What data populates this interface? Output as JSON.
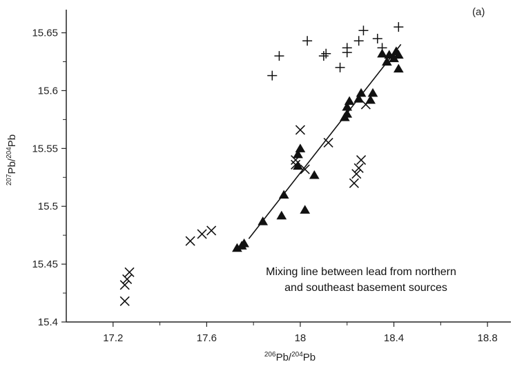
{
  "chart_data": {
    "type": "scatter",
    "panel_label": "(a)",
    "xlabel": {
      "sup1": "206",
      "base1": "Pb/",
      "sup2": "204",
      "base2": "Pb"
    },
    "ylabel": {
      "sup1": "207",
      "base1": "Pb/",
      "sup2": "204",
      "base2": "Pb"
    },
    "xlim": [
      17.0,
      18.9
    ],
    "ylim": [
      15.4,
      15.67
    ],
    "xticks": [
      17.2,
      17.6,
      18.0,
      18.4,
      18.8
    ],
    "xtick_labels": [
      "17.2",
      "17.6",
      "18",
      "18.4",
      "18.8"
    ],
    "yticks": [
      15.4,
      15.45,
      15.5,
      15.55,
      15.6,
      15.65
    ],
    "ytick_labels": [
      "15.4",
      "15.45",
      "15.5",
      "15.55",
      "15.6",
      "15.65"
    ],
    "annotation": [
      "Mixing line between lead from northern",
      "and southeast basement sources"
    ],
    "mixing_line": {
      "x": [
        17.78,
        18.43
      ],
      "y": [
        15.472,
        15.64
      ]
    },
    "series": [
      {
        "marker": "plus",
        "points": [
          [
            17.88,
            15.613
          ],
          [
            17.91,
            15.63
          ],
          [
            18.03,
            15.643
          ],
          [
            18.1,
            15.63
          ],
          [
            18.11,
            15.632
          ],
          [
            18.17,
            15.62
          ],
          [
            18.2,
            15.633
          ],
          [
            18.2,
            15.637
          ],
          [
            18.25,
            15.643
          ],
          [
            18.27,
            15.652
          ],
          [
            18.33,
            15.645
          ],
          [
            18.35,
            15.637
          ],
          [
            18.42,
            15.655
          ]
        ]
      },
      {
        "marker": "cross",
        "points": [
          [
            17.25,
            15.418
          ],
          [
            17.25,
            15.432
          ],
          [
            17.26,
            15.437
          ],
          [
            17.27,
            15.443
          ],
          [
            17.53,
            15.47
          ],
          [
            17.58,
            15.476
          ],
          [
            17.62,
            15.479
          ],
          [
            17.98,
            15.536
          ],
          [
            17.98,
            15.54
          ],
          [
            18.0,
            15.566
          ],
          [
            18.02,
            15.532
          ],
          [
            18.12,
            15.555
          ],
          [
            18.23,
            15.52
          ],
          [
            18.24,
            15.528
          ],
          [
            18.25,
            15.533
          ],
          [
            18.26,
            15.54
          ],
          [
            18.28,
            15.588
          ]
        ]
      },
      {
        "marker": "triangle",
        "points": [
          [
            17.73,
            15.464
          ],
          [
            17.75,
            15.466
          ],
          [
            17.76,
            15.468
          ],
          [
            17.84,
            15.487
          ],
          [
            17.92,
            15.492
          ],
          [
            17.93,
            15.51
          ],
          [
            17.99,
            15.535
          ],
          [
            17.99,
            15.545
          ],
          [
            18.0,
            15.55
          ],
          [
            18.02,
            15.497
          ],
          [
            18.06,
            15.527
          ],
          [
            18.19,
            15.577
          ],
          [
            18.2,
            15.58
          ],
          [
            18.2,
            15.586
          ],
          [
            18.21,
            15.591
          ],
          [
            18.25,
            15.593
          ],
          [
            18.26,
            15.598
          ],
          [
            18.3,
            15.592
          ],
          [
            18.31,
            15.598
          ],
          [
            18.35,
            15.632
          ],
          [
            18.37,
            15.625
          ],
          [
            18.38,
            15.631
          ],
          [
            18.4,
            15.628
          ],
          [
            18.41,
            15.634
          ],
          [
            18.42,
            15.619
          ],
          [
            18.42,
            15.631
          ]
        ]
      }
    ]
  }
}
